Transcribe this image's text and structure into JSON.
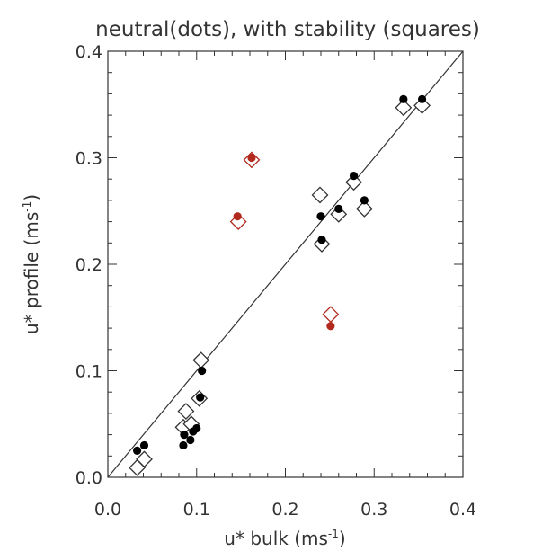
{
  "chart_data": {
    "type": "scatter",
    "title": "neutral(dots), with stability (squares)",
    "xlabel": {
      "main": "u* bulk (ms",
      "sup": "-1",
      "close": ")"
    },
    "ylabel": {
      "main": "u* profile (ms",
      "sup": "-1",
      "close": ")"
    },
    "xlim": [
      0.0,
      0.4
    ],
    "ylim": [
      0.0,
      0.4
    ],
    "xticks": [
      "0.0",
      "0.1",
      "0.2",
      "0.3",
      "0.4"
    ],
    "yticks": [
      "0.0",
      "0.1",
      "0.2",
      "0.3",
      "0.4"
    ],
    "reference_line": {
      "type": "1:1",
      "from": [
        0.0,
        0.0
      ],
      "to": [
        0.4,
        0.4
      ]
    },
    "colors": {
      "normal": "#000000",
      "outlier": "#b22a1e"
    },
    "series": [
      {
        "marker": "dot",
        "points": [
          [
            0.033,
            0.025,
            "normal"
          ],
          [
            0.041,
            0.03,
            "normal"
          ],
          [
            0.085,
            0.03,
            "normal"
          ],
          [
            0.086,
            0.04,
            "normal"
          ],
          [
            0.093,
            0.035,
            "normal"
          ],
          [
            0.096,
            0.043,
            "normal"
          ],
          [
            0.1,
            0.046,
            "normal"
          ],
          [
            0.104,
            0.075,
            "normal"
          ],
          [
            0.106,
            0.1,
            "normal"
          ],
          [
            0.24,
            0.245,
            "normal"
          ],
          [
            0.241,
            0.223,
            "normal"
          ],
          [
            0.26,
            0.252,
            "normal"
          ],
          [
            0.277,
            0.283,
            "normal"
          ],
          [
            0.289,
            0.26,
            "normal"
          ],
          [
            0.333,
            0.355,
            "normal"
          ],
          [
            0.354,
            0.355,
            "normal"
          ],
          [
            0.146,
            0.245,
            "outlier"
          ],
          [
            0.162,
            0.3,
            "outlier"
          ],
          [
            0.251,
            0.142,
            "outlier"
          ]
        ]
      },
      {
        "marker": "diamond",
        "points": [
          [
            0.033,
            0.009,
            "normal"
          ],
          [
            0.041,
            0.017,
            "normal"
          ],
          [
            0.085,
            0.047,
            "normal"
          ],
          [
            0.088,
            0.062,
            "normal"
          ],
          [
            0.094,
            0.05,
            "normal"
          ],
          [
            0.103,
            0.074,
            "normal"
          ],
          [
            0.105,
            0.11,
            "normal"
          ],
          [
            0.239,
            0.265,
            "normal"
          ],
          [
            0.241,
            0.219,
            "normal"
          ],
          [
            0.26,
            0.247,
            "normal"
          ],
          [
            0.277,
            0.277,
            "normal"
          ],
          [
            0.289,
            0.252,
            "normal"
          ],
          [
            0.333,
            0.347,
            "normal"
          ],
          [
            0.354,
            0.349,
            "normal"
          ],
          [
            0.147,
            0.24,
            "outlier"
          ],
          [
            0.162,
            0.298,
            "outlier"
          ],
          [
            0.251,
            0.153,
            "outlier"
          ]
        ]
      }
    ]
  }
}
